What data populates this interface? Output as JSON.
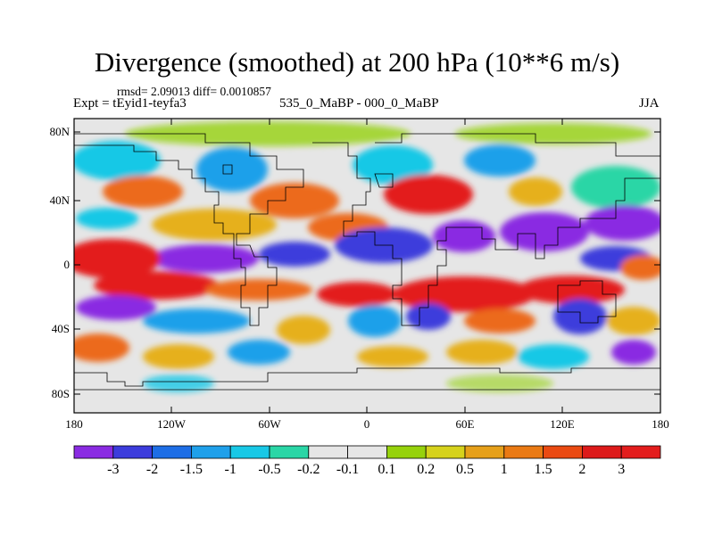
{
  "title": "Divergence (smoothed) at 200 hPa (10**6 m/s)",
  "stats": "rmsd= 2.09013 diff= 0.0010857",
  "experiment": "Expt = tEyid1-teyfa3",
  "difference": "535_0_MaBP - 000_0_MaBP",
  "season": "JJA",
  "map": {
    "lat_ticks": [
      "80N",
      "40N",
      "0",
      "40S",
      "80S"
    ],
    "lon_ticks": [
      "180",
      "120W",
      "60W",
      "0",
      "60E",
      "120E",
      "180"
    ]
  },
  "colorbar": {
    "labels": [
      "-3",
      "-2",
      "-1.5",
      "-1",
      "-0.5",
      "-0.2",
      "-0.1",
      "0.1",
      "0.2",
      "0.5",
      "1",
      "1.5",
      "2",
      "3"
    ],
    "colors": [
      "#8a2be2",
      "#3c3cdc",
      "#1e6ee6",
      "#1fa0ea",
      "#18c8e6",
      "#2ad6a6",
      "#e6e6e6",
      "#e6e6e6",
      "#96d20c",
      "#d6d21c",
      "#e6a01a",
      "#ea7a14",
      "#ea4a12",
      "#dd1a1a",
      "#e31d1d"
    ]
  },
  "colors": {
    "strong_div": "#e31d1d",
    "mod_div": "#ec6a1a",
    "weak_div": "#e6b01a",
    "strong_conv": "#8a2be2",
    "mod_conv": "#3c3cdc",
    "weak_conv": "#1fa0ea",
    "neutral": "#e6e6e6"
  }
}
